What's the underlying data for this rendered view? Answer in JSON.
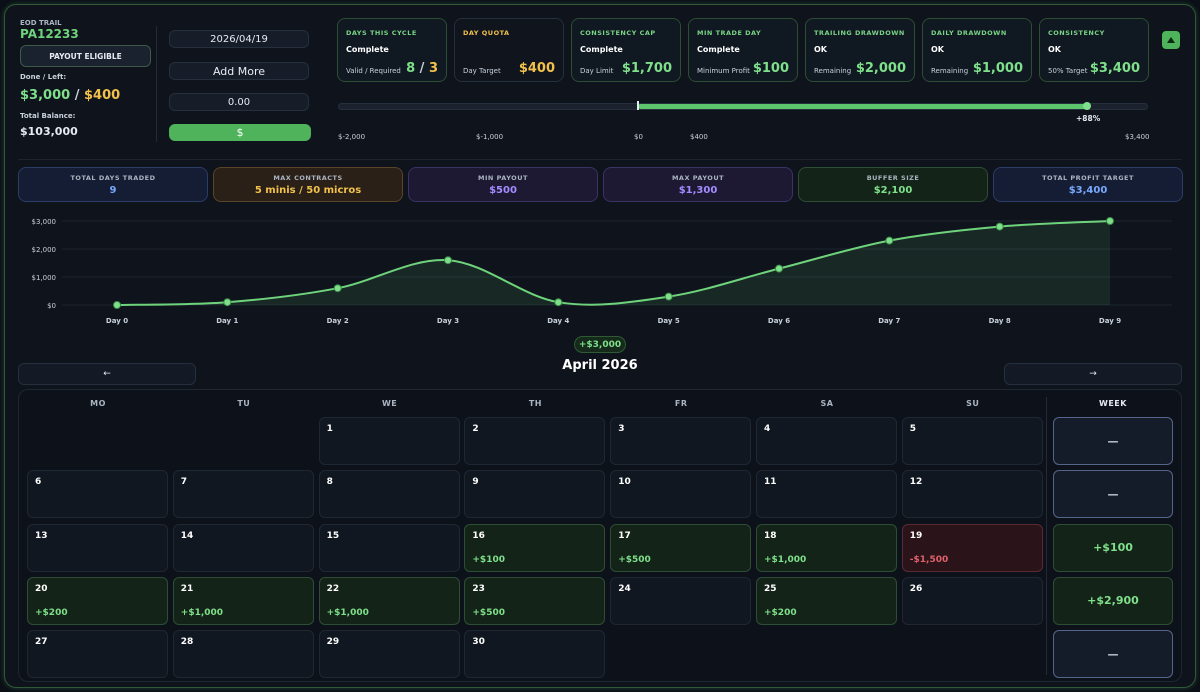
{
  "account": {
    "type_label": "EOD TRAIL",
    "id": "PA12233",
    "payout_button": "PAYOUT ELIGIBLE",
    "done_left_label": "Done / Left:",
    "done": "$3,000",
    "sep": "/",
    "left": "$400",
    "balance_label": "Total Balance:",
    "balance": "$103,000"
  },
  "entry": {
    "date": "2026/04/19",
    "add_more": "Add More",
    "amount": "0.00",
    "submit": "$"
  },
  "cards": [
    {
      "title": "DAYS THIS CYCLE",
      "status": "Complete",
      "sub": "Valid / Required",
      "value_a": "8",
      "sep": "/",
      "value_b": "3",
      "tone": "ok"
    },
    {
      "title": "DAY QUOTA",
      "status": "",
      "sub": "Day Target",
      "value": "$400",
      "tone": "warn"
    },
    {
      "title": "CONSISTENCY CAP",
      "status": "Complete",
      "sub": "Day Limit",
      "value": "$1,700",
      "tone": "ok"
    },
    {
      "title": "MIN TRADE DAY",
      "status": "Complete",
      "sub": "Minimum Profit",
      "value": "$100",
      "tone": "ok"
    },
    {
      "title": "TRAILING DRAWDOWN",
      "status": "OK",
      "sub": "Remaining",
      "value": "$2,000",
      "tone": "ok"
    },
    {
      "title": "DAILY DRAWDOWN",
      "status": "OK",
      "sub": "Remaining",
      "value": "$1,000",
      "tone": "ok"
    },
    {
      "title": "CONSISTENCY",
      "status": "OK",
      "sub": "50% Target",
      "value": "$3,400",
      "tone": "ok"
    }
  ],
  "collapse_icon": "chevron-up-icon",
  "progress": {
    "percent_label": "+88%",
    "percent": 0.88,
    "labels": [
      "$-2,000",
      "$-1,000",
      "$0",
      "$400",
      "$3,400"
    ]
  },
  "metrics": [
    {
      "title": "TOTAL DAYS TRADED",
      "value": "9",
      "color": "#7aa8ff",
      "bg": "#141d33",
      "border": "#2b3c66"
    },
    {
      "title": "MAX CONTRACTS",
      "value": "5 minis / 50 micros",
      "color": "#f2c14b",
      "bg": "#2a2018",
      "border": "#5a4428"
    },
    {
      "title": "MIN PAYOUT",
      "value": "$500",
      "color": "#a48bff",
      "bg": "#1d1933",
      "border": "#3b3266"
    },
    {
      "title": "MAX PAYOUT",
      "value": "$1,300",
      "color": "#a48bff",
      "bg": "#1d1933",
      "border": "#3b3266"
    },
    {
      "title": "BUFFER SIZE",
      "value": "$2,100",
      "color": "#7ee08a",
      "bg": "#142318",
      "border": "#2d4d34"
    },
    {
      "title": "TOTAL PROFIT TARGET",
      "value": "$3,400",
      "color": "#7aa8ff",
      "bg": "#141d33",
      "border": "#2b3c66"
    }
  ],
  "chart_data": {
    "type": "area",
    "x": [
      "Day 0",
      "Day 1",
      "Day 2",
      "Day 3",
      "Day 4",
      "Day 5",
      "Day 6",
      "Day 7",
      "Day 8",
      "Day 9"
    ],
    "series": [
      {
        "values": [
          0,
          100,
          600,
          1600,
          100,
          300,
          1300,
          2300,
          2800,
          3000
        ]
      }
    ],
    "yticks": [
      "$0",
      "$1,000",
      "$2,000",
      "$3,000"
    ],
    "ylim": [
      0,
      3000
    ],
    "grid": true,
    "color": "#6fd37c"
  },
  "calendar": {
    "total": "+$3,000",
    "month": "April 2026",
    "prev": "←",
    "next": "→",
    "dow": [
      "MO",
      "TU",
      "WE",
      "TH",
      "FR",
      "SA",
      "SU"
    ],
    "week_header": "WEEK",
    "weeks": [
      {
        "days": [
          null,
          null,
          {
            "n": "1"
          },
          {
            "n": "2"
          },
          {
            "n": "3"
          },
          {
            "n": "4"
          },
          {
            "n": "5"
          }
        ],
        "total": "—"
      },
      {
        "days": [
          {
            "n": "6"
          },
          {
            "n": "7"
          },
          {
            "n": "8"
          },
          {
            "n": "9"
          },
          {
            "n": "10"
          },
          {
            "n": "11"
          },
          {
            "n": "12"
          }
        ],
        "total": "—"
      },
      {
        "days": [
          {
            "n": "13"
          },
          {
            "n": "14"
          },
          {
            "n": "15"
          },
          {
            "n": "16",
            "pl": "+$100"
          },
          {
            "n": "17",
            "pl": "+$500"
          },
          {
            "n": "18",
            "pl": "+$1,000"
          },
          {
            "n": "19",
            "pl": "-$1,500"
          }
        ],
        "total": "+$100"
      },
      {
        "days": [
          {
            "n": "20",
            "pl": "+$200"
          },
          {
            "n": "21",
            "pl": "+$1,000"
          },
          {
            "n": "22",
            "pl": "+$1,000"
          },
          {
            "n": "23",
            "pl": "+$500"
          },
          {
            "n": "24"
          },
          {
            "n": "25",
            "pl": "+$200"
          },
          {
            "n": "26"
          }
        ],
        "total": "+$2,900"
      },
      {
        "days": [
          {
            "n": "27"
          },
          {
            "n": "28"
          },
          {
            "n": "29"
          },
          {
            "n": "30"
          },
          null,
          null,
          null
        ],
        "total": "—"
      }
    ]
  }
}
